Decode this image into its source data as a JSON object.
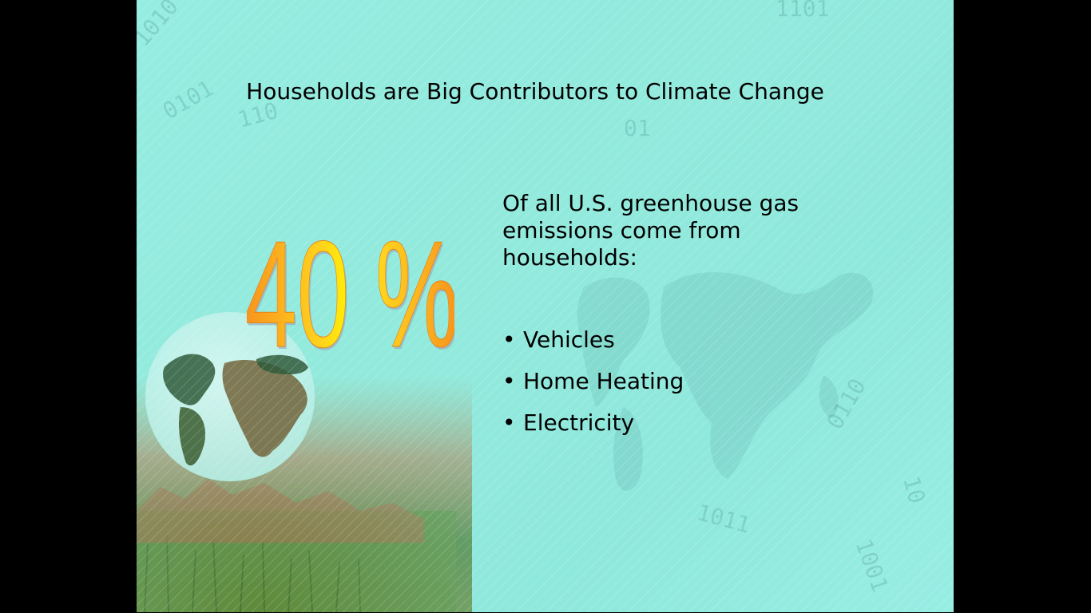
{
  "slide": {
    "title": "Households are Big Contributors to Climate Change",
    "big_stat": "40 %",
    "intro_text": "Of all U.S. greenhouse gas emissions come from households:",
    "bullet_marker": "•",
    "bullets": [
      {
        "label": "Vehicles"
      },
      {
        "label": "Home Heating"
      },
      {
        "label": "Electricity"
      }
    ],
    "background_digits": [
      "1010",
      "0101",
      "1101",
      "0110",
      "1001",
      "01",
      "10",
      "110"
    ]
  },
  "colors": {
    "background": "#92eadd",
    "stat_fill_light": "#fff200",
    "stat_fill_dark": "#f7931e",
    "text": "#000000",
    "letterbox": "#000000"
  }
}
